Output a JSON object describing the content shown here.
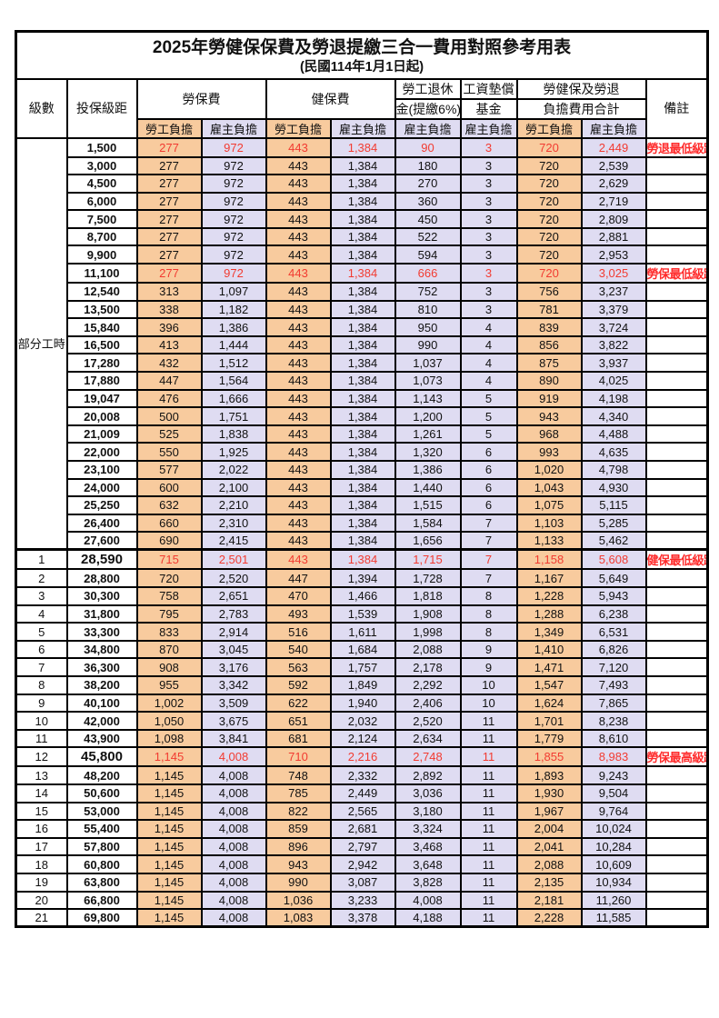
{
  "page": {
    "title": "2025年勞健保保費及勞退提繳三合一費用對照參考用表",
    "subtitle": "(民國114年1月1日起)"
  },
  "table": {
    "headers": {
      "level": "級數",
      "bracket": "投保級距",
      "labor": "勞保費",
      "health": "健保費",
      "pension_l1": "勞工退休",
      "pension_l2": "金(提繳6%)",
      "fund_l1": "工資墊償",
      "fund_l2": "基金",
      "total_l1": "勞健保及勞退",
      "total_l2": "負擔費用合計",
      "note": "備註",
      "employee": "勞工負擔",
      "employer": "雇主負擔"
    },
    "part_time_label": "部分工時",
    "colors": {
      "employee_bg": "#F8CB9E",
      "employer_bg": "#DFDCF2",
      "highlight_text": "#F23B31",
      "note_text": "#FF2B2B"
    },
    "rows": [
      {
        "level": "",
        "bracket": "1,500",
        "values": [
          "277",
          "972",
          "443",
          "1,384",
          "90",
          "3",
          "720",
          "2,449"
        ],
        "note": "勞退最低級距",
        "highlight": true,
        "bold_bracket": false
      },
      {
        "level": "",
        "bracket": "3,000",
        "values": [
          "277",
          "972",
          "443",
          "1,384",
          "180",
          "3",
          "720",
          "2,539"
        ],
        "note": "",
        "highlight": false,
        "bold_bracket": false
      },
      {
        "level": "",
        "bracket": "4,500",
        "values": [
          "277",
          "972",
          "443",
          "1,384",
          "270",
          "3",
          "720",
          "2,629"
        ],
        "note": "",
        "highlight": false,
        "bold_bracket": false
      },
      {
        "level": "",
        "bracket": "6,000",
        "values": [
          "277",
          "972",
          "443",
          "1,384",
          "360",
          "3",
          "720",
          "2,719"
        ],
        "note": "",
        "highlight": false,
        "bold_bracket": false
      },
      {
        "level": "",
        "bracket": "7,500",
        "values": [
          "277",
          "972",
          "443",
          "1,384",
          "450",
          "3",
          "720",
          "2,809"
        ],
        "note": "",
        "highlight": false,
        "bold_bracket": false
      },
      {
        "level": "",
        "bracket": "8,700",
        "values": [
          "277",
          "972",
          "443",
          "1,384",
          "522",
          "3",
          "720",
          "2,881"
        ],
        "note": "",
        "highlight": false,
        "bold_bracket": false
      },
      {
        "level": "",
        "bracket": "9,900",
        "values": [
          "277",
          "972",
          "443",
          "1,384",
          "594",
          "3",
          "720",
          "2,953"
        ],
        "note": "",
        "highlight": false,
        "bold_bracket": false
      },
      {
        "level": "",
        "bracket": "11,100",
        "values": [
          "277",
          "972",
          "443",
          "1,384",
          "666",
          "3",
          "720",
          "3,025"
        ],
        "note": "勞保最低級距",
        "highlight": true,
        "bold_bracket": false
      },
      {
        "level": "",
        "bracket": "12,540",
        "values": [
          "313",
          "1,097",
          "443",
          "1,384",
          "752",
          "3",
          "756",
          "3,237"
        ],
        "note": "",
        "highlight": false,
        "bold_bracket": false
      },
      {
        "level": "",
        "bracket": "13,500",
        "values": [
          "338",
          "1,182",
          "443",
          "1,384",
          "810",
          "3",
          "781",
          "3,379"
        ],
        "note": "",
        "highlight": false,
        "bold_bracket": false
      },
      {
        "level": "",
        "bracket": "15,840",
        "values": [
          "396",
          "1,386",
          "443",
          "1,384",
          "950",
          "4",
          "839",
          "3,724"
        ],
        "note": "",
        "highlight": false,
        "bold_bracket": false
      },
      {
        "level": "",
        "bracket": "16,500",
        "values": [
          "413",
          "1,444",
          "443",
          "1,384",
          "990",
          "4",
          "856",
          "3,822"
        ],
        "note": "",
        "highlight": false,
        "bold_bracket": false
      },
      {
        "level": "",
        "bracket": "17,280",
        "values": [
          "432",
          "1,512",
          "443",
          "1,384",
          "1,037",
          "4",
          "875",
          "3,937"
        ],
        "note": "",
        "highlight": false,
        "bold_bracket": false
      },
      {
        "level": "",
        "bracket": "17,880",
        "values": [
          "447",
          "1,564",
          "443",
          "1,384",
          "1,073",
          "4",
          "890",
          "4,025"
        ],
        "note": "",
        "highlight": false,
        "bold_bracket": false
      },
      {
        "level": "",
        "bracket": "19,047",
        "values": [
          "476",
          "1,666",
          "443",
          "1,384",
          "1,143",
          "5",
          "919",
          "4,198"
        ],
        "note": "",
        "highlight": false,
        "bold_bracket": false
      },
      {
        "level": "",
        "bracket": "20,008",
        "values": [
          "500",
          "1,751",
          "443",
          "1,384",
          "1,200",
          "5",
          "943",
          "4,340"
        ],
        "note": "",
        "highlight": false,
        "bold_bracket": false
      },
      {
        "level": "",
        "bracket": "21,009",
        "values": [
          "525",
          "1,838",
          "443",
          "1,384",
          "1,261",
          "5",
          "968",
          "4,488"
        ],
        "note": "",
        "highlight": false,
        "bold_bracket": false
      },
      {
        "level": "",
        "bracket": "22,000",
        "values": [
          "550",
          "1,925",
          "443",
          "1,384",
          "1,320",
          "6",
          "993",
          "4,635"
        ],
        "note": "",
        "highlight": false,
        "bold_bracket": false
      },
      {
        "level": "",
        "bracket": "23,100",
        "values": [
          "577",
          "2,022",
          "443",
          "1,384",
          "1,386",
          "6",
          "1,020",
          "4,798"
        ],
        "note": "",
        "highlight": false,
        "bold_bracket": false
      },
      {
        "level": "",
        "bracket": "24,000",
        "values": [
          "600",
          "2,100",
          "443",
          "1,384",
          "1,440",
          "6",
          "1,043",
          "4,930"
        ],
        "note": "",
        "highlight": false,
        "bold_bracket": false
      },
      {
        "level": "",
        "bracket": "25,250",
        "values": [
          "632",
          "2,210",
          "443",
          "1,384",
          "1,515",
          "6",
          "1,075",
          "5,115"
        ],
        "note": "",
        "highlight": false,
        "bold_bracket": false
      },
      {
        "level": "",
        "bracket": "26,400",
        "values": [
          "660",
          "2,310",
          "443",
          "1,384",
          "1,584",
          "7",
          "1,103",
          "5,285"
        ],
        "note": "",
        "highlight": false,
        "bold_bracket": false
      },
      {
        "level": "",
        "bracket": "27,600",
        "values": [
          "690",
          "2,415",
          "443",
          "1,384",
          "1,656",
          "7",
          "1,133",
          "5,462"
        ],
        "note": "",
        "highlight": false,
        "bold_bracket": false
      },
      {
        "level": "1",
        "bracket": "28,590",
        "values": [
          "715",
          "2,501",
          "443",
          "1,384",
          "1,715",
          "7",
          "1,158",
          "5,608"
        ],
        "note": "健保最低級距",
        "highlight": true,
        "bold_bracket": true
      },
      {
        "level": "2",
        "bracket": "28,800",
        "values": [
          "720",
          "2,520",
          "447",
          "1,394",
          "1,728",
          "7",
          "1,167",
          "5,649"
        ],
        "note": "",
        "highlight": false,
        "bold_bracket": false
      },
      {
        "level": "3",
        "bracket": "30,300",
        "values": [
          "758",
          "2,651",
          "470",
          "1,466",
          "1,818",
          "8",
          "1,228",
          "5,943"
        ],
        "note": "",
        "highlight": false,
        "bold_bracket": false
      },
      {
        "level": "4",
        "bracket": "31,800",
        "values": [
          "795",
          "2,783",
          "493",
          "1,539",
          "1,908",
          "8",
          "1,288",
          "6,238"
        ],
        "note": "",
        "highlight": false,
        "bold_bracket": false
      },
      {
        "level": "5",
        "bracket": "33,300",
        "values": [
          "833",
          "2,914",
          "516",
          "1,611",
          "1,998",
          "8",
          "1,349",
          "6,531"
        ],
        "note": "",
        "highlight": false,
        "bold_bracket": false
      },
      {
        "level": "6",
        "bracket": "34,800",
        "values": [
          "870",
          "3,045",
          "540",
          "1,684",
          "2,088",
          "9",
          "1,410",
          "6,826"
        ],
        "note": "",
        "highlight": false,
        "bold_bracket": false
      },
      {
        "level": "7",
        "bracket": "36,300",
        "values": [
          "908",
          "3,176",
          "563",
          "1,757",
          "2,178",
          "9",
          "1,471",
          "7,120"
        ],
        "note": "",
        "highlight": false,
        "bold_bracket": false
      },
      {
        "level": "8",
        "bracket": "38,200",
        "values": [
          "955",
          "3,342",
          "592",
          "1,849",
          "2,292",
          "10",
          "1,547",
          "7,493"
        ],
        "note": "",
        "highlight": false,
        "bold_bracket": false
      },
      {
        "level": "9",
        "bracket": "40,100",
        "values": [
          "1,002",
          "3,509",
          "622",
          "1,940",
          "2,406",
          "10",
          "1,624",
          "7,865"
        ],
        "note": "",
        "highlight": false,
        "bold_bracket": false
      },
      {
        "level": "10",
        "bracket": "42,000",
        "values": [
          "1,050",
          "3,675",
          "651",
          "2,032",
          "2,520",
          "11",
          "1,701",
          "8,238"
        ],
        "note": "",
        "highlight": false,
        "bold_bracket": false
      },
      {
        "level": "11",
        "bracket": "43,900",
        "values": [
          "1,098",
          "3,841",
          "681",
          "2,124",
          "2,634",
          "11",
          "1,779",
          "8,610"
        ],
        "note": "",
        "highlight": false,
        "bold_bracket": false
      },
      {
        "level": "12",
        "bracket": "45,800",
        "values": [
          "1,145",
          "4,008",
          "710",
          "2,216",
          "2,748",
          "11",
          "1,855",
          "8,983"
        ],
        "note": "勞保最高級距",
        "highlight": true,
        "bold_bracket": true
      },
      {
        "level": "13",
        "bracket": "48,200",
        "values": [
          "1,145",
          "4,008",
          "748",
          "2,332",
          "2,892",
          "11",
          "1,893",
          "9,243"
        ],
        "note": "",
        "highlight": false,
        "bold_bracket": false
      },
      {
        "level": "14",
        "bracket": "50,600",
        "values": [
          "1,145",
          "4,008",
          "785",
          "2,449",
          "3,036",
          "11",
          "1,930",
          "9,504"
        ],
        "note": "",
        "highlight": false,
        "bold_bracket": false
      },
      {
        "level": "15",
        "bracket": "53,000",
        "values": [
          "1,145",
          "4,008",
          "822",
          "2,565",
          "3,180",
          "11",
          "1,967",
          "9,764"
        ],
        "note": "",
        "highlight": false,
        "bold_bracket": false
      },
      {
        "level": "16",
        "bracket": "55,400",
        "values": [
          "1,145",
          "4,008",
          "859",
          "2,681",
          "3,324",
          "11",
          "2,004",
          "10,024"
        ],
        "note": "",
        "highlight": false,
        "bold_bracket": false
      },
      {
        "level": "17",
        "bracket": "57,800",
        "values": [
          "1,145",
          "4,008",
          "896",
          "2,797",
          "3,468",
          "11",
          "2,041",
          "10,284"
        ],
        "note": "",
        "highlight": false,
        "bold_bracket": false
      },
      {
        "level": "18",
        "bracket": "60,800",
        "values": [
          "1,145",
          "4,008",
          "943",
          "2,942",
          "3,648",
          "11",
          "2,088",
          "10,609"
        ],
        "note": "",
        "highlight": false,
        "bold_bracket": false
      },
      {
        "level": "19",
        "bracket": "63,800",
        "values": [
          "1,145",
          "4,008",
          "990",
          "3,087",
          "3,828",
          "11",
          "2,135",
          "10,934"
        ],
        "note": "",
        "highlight": false,
        "bold_bracket": false
      },
      {
        "level": "20",
        "bracket": "66,800",
        "values": [
          "1,145",
          "4,008",
          "1,036",
          "3,233",
          "4,008",
          "11",
          "2,181",
          "11,260"
        ],
        "note": "",
        "highlight": false,
        "bold_bracket": false
      },
      {
        "level": "21",
        "bracket": "69,800",
        "values": [
          "1,145",
          "4,008",
          "1,083",
          "3,378",
          "4,188",
          "11",
          "2,228",
          "11,585"
        ],
        "note": "",
        "highlight": false,
        "bold_bracket": false
      }
    ]
  }
}
